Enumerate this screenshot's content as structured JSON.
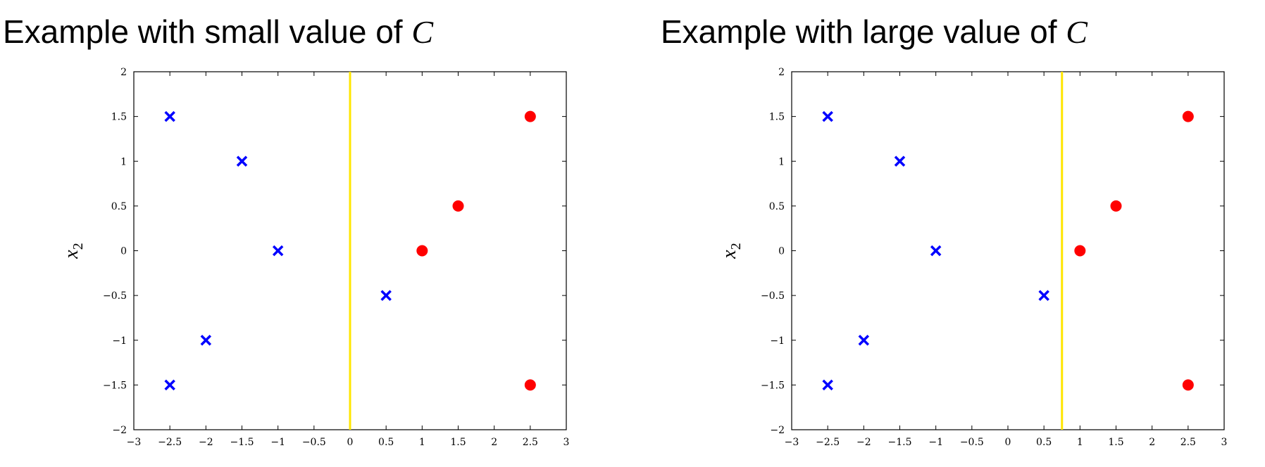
{
  "chart_data": [
    {
      "type": "scatter",
      "title": "Example with small value of",
      "title_var": "C",
      "xlabel": "",
      "ylabel": "x",
      "ylabel_sub": "2",
      "xlim": [
        -3,
        3
      ],
      "ylim": [
        -2,
        2
      ],
      "xticks": [
        -3,
        -2.5,
        -2,
        -1.5,
        -1,
        -0.5,
        0,
        0.5,
        1,
        1.5,
        2,
        2.5,
        3
      ],
      "xtick_labels": [
        "−3",
        "−2.5",
        "−2",
        "−1.5",
        "−1",
        "−0.5",
        "0",
        "0.5",
        "1",
        "1.5",
        "2",
        "2.5",
        "3"
      ],
      "yticks": [
        -2,
        -1.5,
        -1,
        -0.5,
        0,
        0.5,
        1,
        1.5,
        2
      ],
      "ytick_labels": [
        "−2",
        "−1.5",
        "−1",
        "−0.5",
        "0",
        "0.5",
        "1",
        "1.5",
        "2"
      ],
      "grid": false,
      "series": [
        {
          "marker": "x",
          "color": "#0000ff",
          "points": [
            [
              -2.5,
              1.5
            ],
            [
              -1.5,
              1
            ],
            [
              -1,
              0
            ],
            [
              0.5,
              -0.5
            ],
            [
              -2,
              -1
            ],
            [
              -2.5,
              -1.5
            ]
          ]
        },
        {
          "marker": "o",
          "color": "#ff0000",
          "points": [
            [
              2.5,
              1.5
            ],
            [
              1.5,
              0.5
            ],
            [
              1,
              0
            ],
            [
              2.5,
              -1.5
            ]
          ]
        }
      ],
      "decision_boundary": {
        "x": 0,
        "color": "#ffe600"
      }
    },
    {
      "type": "scatter",
      "title": "Example with large value of",
      "title_var": "C",
      "xlabel": "",
      "ylabel": "x",
      "ylabel_sub": "2",
      "xlim": [
        -3,
        3
      ],
      "ylim": [
        -2,
        2
      ],
      "xticks": [
        -3,
        -2.5,
        -2,
        -1.5,
        -1,
        -0.5,
        0,
        0.5,
        1,
        1.5,
        2,
        2.5,
        3
      ],
      "xtick_labels": [
        "−3",
        "−2.5",
        "−2",
        "−1.5",
        "−1",
        "−0.5",
        "0",
        "0.5",
        "1",
        "1.5",
        "2",
        "2.5",
        "3"
      ],
      "yticks": [
        -2,
        -1.5,
        -1,
        -0.5,
        0,
        0.5,
        1,
        1.5,
        2
      ],
      "ytick_labels": [
        "−2",
        "−1.5",
        "−1",
        "−0.5",
        "0",
        "0.5",
        "1",
        "1.5",
        "2"
      ],
      "grid": false,
      "series": [
        {
          "marker": "x",
          "color": "#0000ff",
          "points": [
            [
              -2.5,
              1.5
            ],
            [
              -1.5,
              1
            ],
            [
              -1,
              0
            ],
            [
              0.5,
              -0.5
            ],
            [
              -2,
              -1
            ],
            [
              -2.5,
              -1.5
            ]
          ]
        },
        {
          "marker": "o",
          "color": "#ff0000",
          "points": [
            [
              2.5,
              1.5
            ],
            [
              1.5,
              0.5
            ],
            [
              1,
              0
            ],
            [
              2.5,
              -1.5
            ]
          ]
        }
      ],
      "decision_boundary": {
        "x": 0.75,
        "color": "#ffe600"
      }
    }
  ]
}
